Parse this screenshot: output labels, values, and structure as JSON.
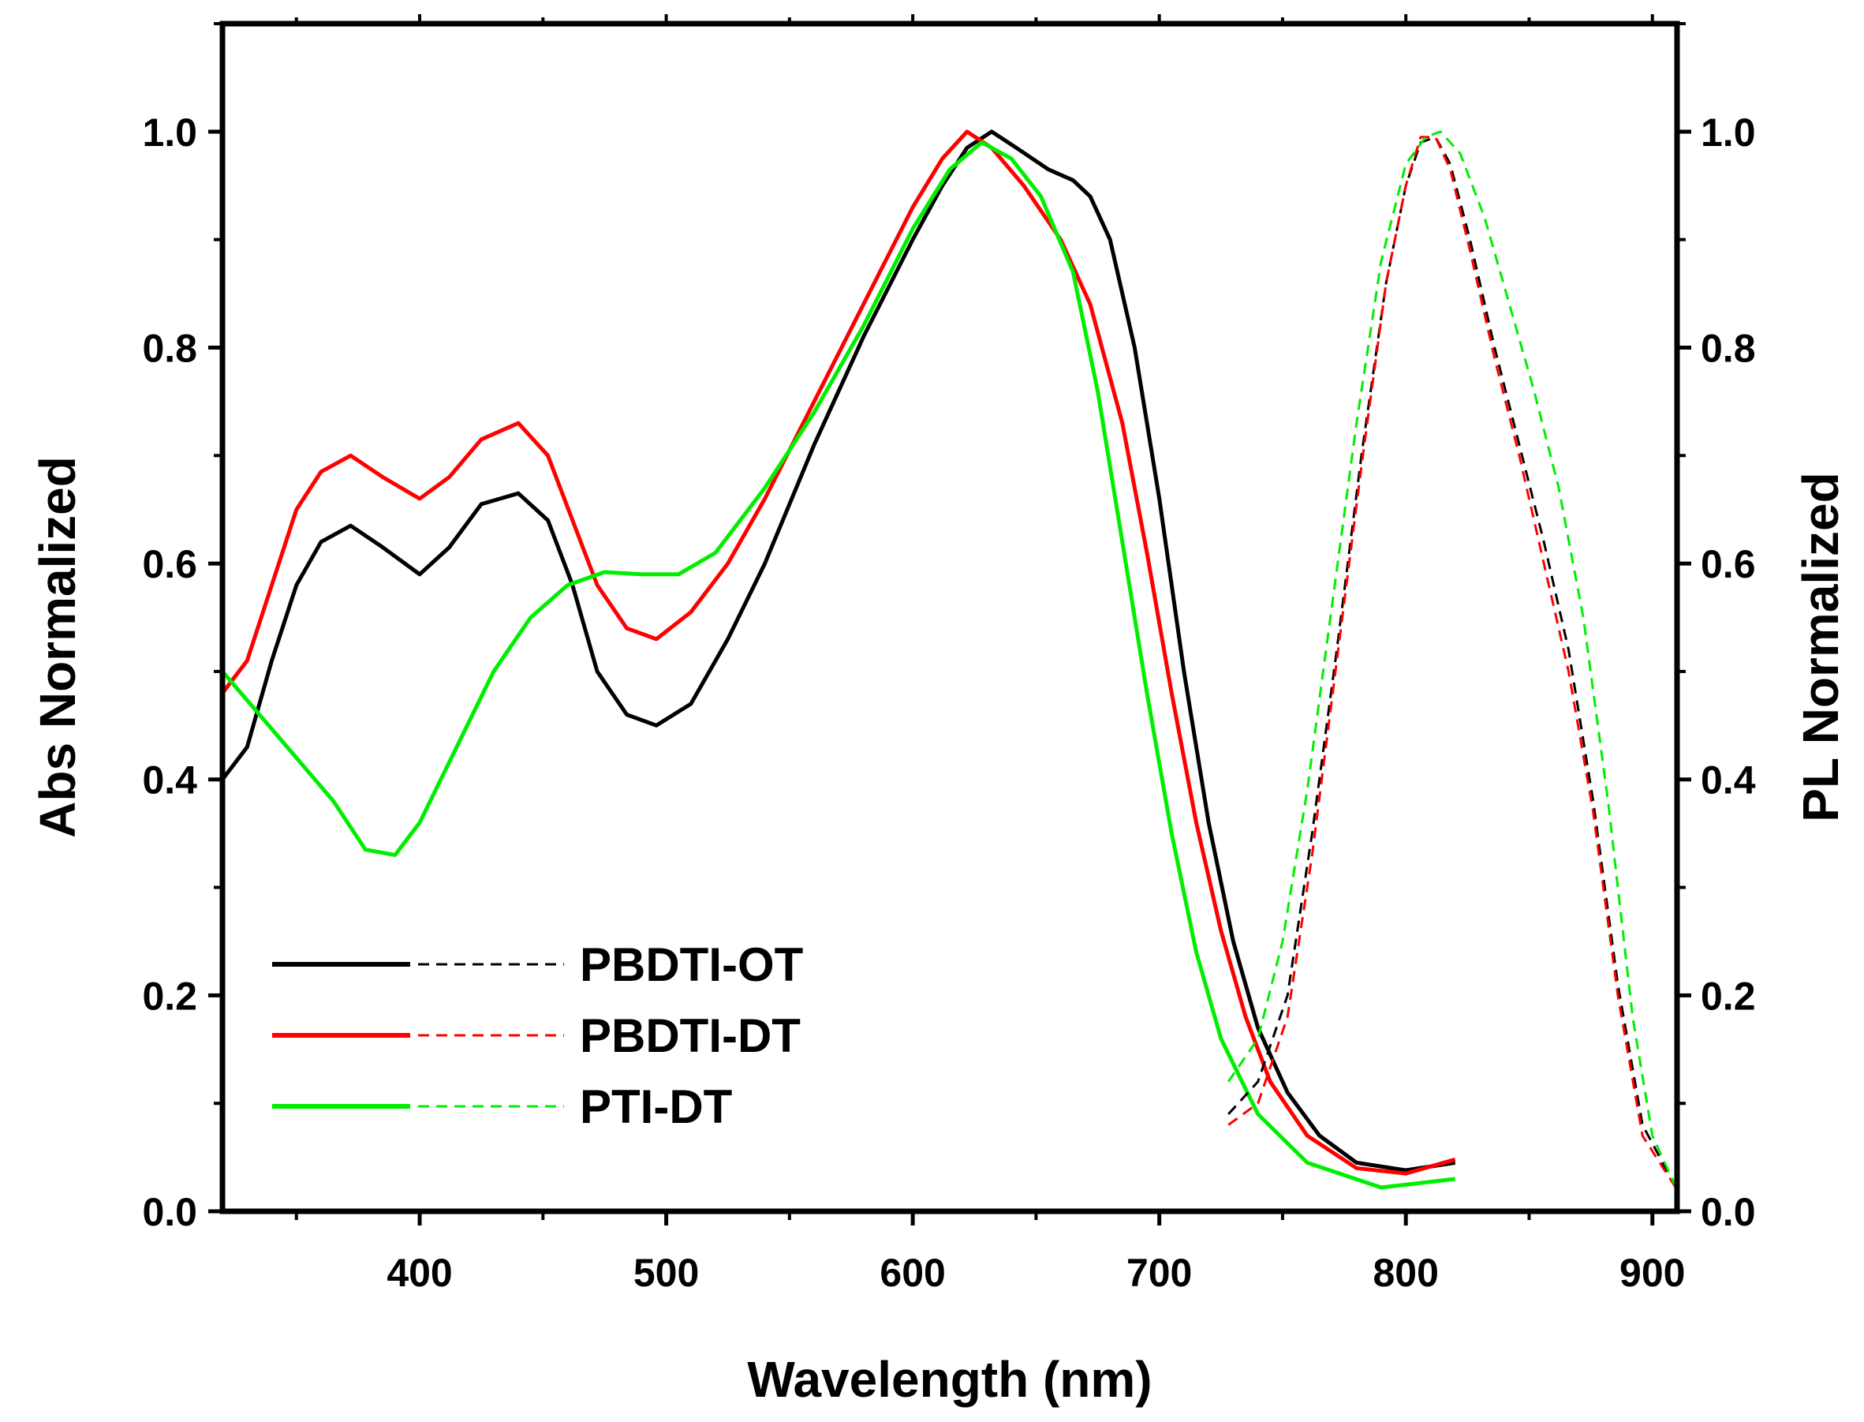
{
  "chart_data": {
    "type": "line",
    "xlabel": "Wavelength (nm)",
    "ylabel": "Abs Normalized",
    "y2label": "PL Normalized",
    "xlim": [
      320,
      910
    ],
    "ylim": [
      0.0,
      1.1
    ],
    "y2lim": [
      0.0,
      1.1
    ],
    "x_ticks": [
      "400",
      "500",
      "600",
      "700",
      "800",
      "900"
    ],
    "y_ticks": [
      "0.0",
      "0.2",
      "0.4",
      "0.6",
      "0.8",
      "1.0"
    ],
    "y2_ticks": [
      "0.0",
      "0.2",
      "0.4",
      "0.6",
      "0.8",
      "1.0"
    ],
    "legend": {
      "position": "bottom-left",
      "entries": [
        {
          "label": "PBDTI-OT",
          "color": "#000000"
        },
        {
          "label": "PBDTI-DT",
          "color": "#ff0000"
        },
        {
          "label": "PTI-DT",
          "color": "#00ee00"
        }
      ]
    },
    "series": [
      {
        "name": "PBDTI-OT",
        "kind": "absorption",
        "axis": "left",
        "style": "solid",
        "color": "#000000",
        "x": [
          320,
          330,
          340,
          350,
          360,
          372,
          385,
          400,
          412,
          425,
          440,
          452,
          462,
          472,
          484,
          496,
          510,
          525,
          540,
          560,
          580,
          600,
          612,
          622,
          632,
          642,
          655,
          665,
          672,
          680,
          690,
          700,
          710,
          720,
          730,
          740,
          752,
          765,
          780,
          800,
          820
        ],
        "y": [
          0.4,
          0.43,
          0.51,
          0.58,
          0.62,
          0.635,
          0.615,
          0.59,
          0.615,
          0.655,
          0.665,
          0.64,
          0.58,
          0.5,
          0.46,
          0.45,
          0.47,
          0.53,
          0.6,
          0.71,
          0.81,
          0.9,
          0.95,
          0.985,
          1.0,
          0.985,
          0.965,
          0.955,
          0.94,
          0.9,
          0.8,
          0.66,
          0.5,
          0.36,
          0.25,
          0.17,
          0.11,
          0.07,
          0.045,
          0.038,
          0.045
        ]
      },
      {
        "name": "PBDTI-DT",
        "kind": "absorption",
        "axis": "left",
        "style": "solid",
        "color": "#ff0000",
        "x": [
          320,
          330,
          340,
          350,
          360,
          372,
          385,
          400,
          412,
          425,
          440,
          452,
          462,
          472,
          484,
          496,
          510,
          525,
          540,
          560,
          580,
          600,
          612,
          622,
          632,
          645,
          660,
          672,
          685,
          695,
          705,
          715,
          725,
          735,
          745,
          760,
          780,
          800,
          820
        ],
        "y": [
          0.48,
          0.51,
          0.58,
          0.65,
          0.685,
          0.7,
          0.68,
          0.66,
          0.68,
          0.715,
          0.73,
          0.7,
          0.64,
          0.58,
          0.54,
          0.53,
          0.555,
          0.6,
          0.66,
          0.75,
          0.84,
          0.93,
          0.975,
          1.0,
          0.985,
          0.95,
          0.9,
          0.84,
          0.73,
          0.61,
          0.48,
          0.36,
          0.26,
          0.18,
          0.12,
          0.07,
          0.04,
          0.035,
          0.048
        ]
      },
      {
        "name": "PTI-DT",
        "kind": "absorption",
        "axis": "left",
        "style": "solid",
        "color": "#00ee00",
        "x": [
          320,
          335,
          350,
          365,
          378,
          390,
          400,
          415,
          430,
          445,
          460,
          475,
          490,
          505,
          520,
          540,
          560,
          580,
          600,
          615,
          628,
          640,
          652,
          665,
          675,
          685,
          695,
          705,
          715,
          725,
          740,
          760,
          790,
          820
        ],
        "y": [
          0.5,
          0.46,
          0.42,
          0.38,
          0.335,
          0.33,
          0.36,
          0.43,
          0.5,
          0.55,
          0.58,
          0.592,
          0.59,
          0.59,
          0.61,
          0.67,
          0.74,
          0.82,
          0.91,
          0.965,
          0.99,
          0.975,
          0.94,
          0.87,
          0.76,
          0.62,
          0.48,
          0.35,
          0.24,
          0.16,
          0.09,
          0.045,
          0.022,
          0.03
        ]
      },
      {
        "name": "PBDTI-OT",
        "kind": "PL",
        "axis": "right",
        "style": "dashed",
        "color": "#000000",
        "x": [
          728,
          740,
          752,
          762,
          772,
          782,
          792,
          800,
          806,
          812,
          818,
          826,
          836,
          846,
          856,
          866,
          876,
          886,
          896,
          910
        ],
        "y": [
          0.09,
          0.12,
          0.2,
          0.35,
          0.52,
          0.7,
          0.86,
          0.95,
          0.99,
          0.995,
          0.97,
          0.9,
          0.8,
          0.71,
          0.62,
          0.52,
          0.38,
          0.21,
          0.08,
          0.02
        ]
      },
      {
        "name": "PBDTI-DT",
        "kind": "PL",
        "axis": "right",
        "style": "dashed",
        "color": "#ff0000",
        "x": [
          728,
          740,
          752,
          762,
          772,
          782,
          792,
          800,
          806,
          812,
          818,
          826,
          836,
          846,
          856,
          866,
          876,
          886,
          896,
          910
        ],
        "y": [
          0.08,
          0.1,
          0.18,
          0.33,
          0.51,
          0.69,
          0.86,
          0.95,
          0.995,
          0.995,
          0.965,
          0.89,
          0.79,
          0.7,
          0.6,
          0.5,
          0.37,
          0.2,
          0.07,
          0.02
        ]
      },
      {
        "name": "PTI-DT",
        "kind": "PL",
        "axis": "right",
        "style": "dashed",
        "color": "#00ee00",
        "x": [
          728,
          740,
          750,
          760,
          770,
          780,
          790,
          800,
          808,
          814,
          822,
          832,
          842,
          852,
          862,
          872,
          882,
          892,
          900,
          910
        ],
        "y": [
          0.12,
          0.16,
          0.25,
          0.39,
          0.56,
          0.73,
          0.88,
          0.97,
          0.995,
          1.0,
          0.98,
          0.92,
          0.84,
          0.76,
          0.67,
          0.55,
          0.38,
          0.18,
          0.07,
          0.02
        ]
      }
    ]
  }
}
